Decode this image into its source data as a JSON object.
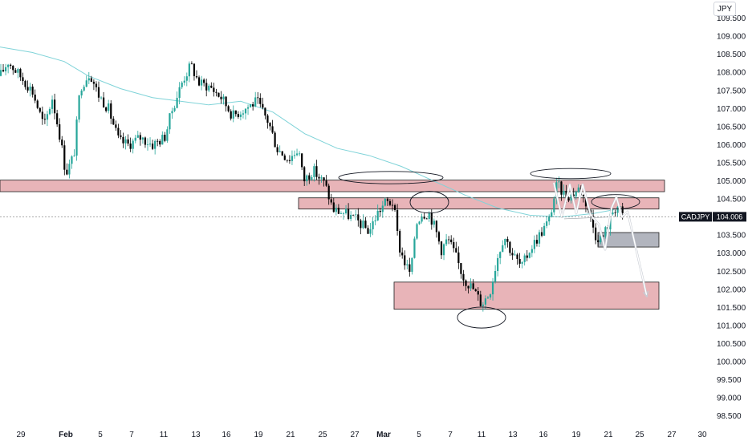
{
  "currency_badge": "JPY",
  "symbol_label": "CADJPY",
  "last_price_label": "104.006",
  "colors": {
    "up": "#26a69a",
    "down": "#000000",
    "ma": "#7fd3d8",
    "zone_fill": "#e8b4b8",
    "zone_stroke": "#1c1c1c",
    "target_fill": "#b2b5be",
    "projection": "#ffffff"
  },
  "chart_data": {
    "type": "candlestick",
    "symbol": "CADJPY",
    "last_price": 104.006,
    "ylim": [
      98.25,
      110.0
    ],
    "y_ticks": [
      "98.500",
      "99.000",
      "99.500",
      "100.000",
      "100.500",
      "101.000",
      "101.500",
      "102.000",
      "102.500",
      "103.000",
      "103.500",
      "104.000",
      "104.500",
      "105.000",
      "105.500",
      "106.000",
      "106.500",
      "107.000",
      "107.500",
      "108.000",
      "108.500",
      "109.000",
      "109.500"
    ],
    "x_ticks": [
      "29",
      "Feb",
      "5",
      "7",
      "11",
      "13",
      "16",
      "19",
      "21",
      "25",
      "27",
      "Mar",
      "5",
      "7",
      "11",
      "13",
      "16",
      "19",
      "21",
      "25",
      "27",
      "30"
    ],
    "x_ticks_bold": [
      "Feb",
      "Mar"
    ],
    "series_path": [
      [
        0,
        107.9
      ],
      [
        10,
        108.3
      ],
      [
        25,
        107.9
      ],
      [
        40,
        107.5
      ],
      [
        55,
        106.5
      ],
      [
        65,
        107.3
      ],
      [
        75,
        106.2
      ],
      [
        82,
        105.2
      ],
      [
        92,
        105.7
      ],
      [
        100,
        107.6
      ],
      [
        112,
        108.0
      ],
      [
        122,
        107.4
      ],
      [
        135,
        107.0
      ],
      [
        148,
        106.1
      ],
      [
        160,
        106.0
      ],
      [
        175,
        106.2
      ],
      [
        190,
        106.0
      ],
      [
        205,
        106.2
      ],
      [
        215,
        107.0
      ],
      [
        228,
        107.8
      ],
      [
        238,
        108.2
      ],
      [
        248,
        107.7
      ],
      [
        262,
        107.6
      ],
      [
        276,
        107.3
      ],
      [
        290,
        106.8
      ],
      [
        305,
        107.0
      ],
      [
        320,
        107.2
      ],
      [
        335,
        106.6
      ],
      [
        345,
        105.9
      ],
      [
        360,
        105.6
      ],
      [
        372,
        105.9
      ],
      [
        378,
        105.0
      ],
      [
        390,
        105.3
      ],
      [
        405,
        104.9
      ],
      [
        415,
        104.2
      ],
      [
        430,
        104.1
      ],
      [
        445,
        103.9
      ],
      [
        460,
        103.6
      ],
      [
        470,
        104.1
      ],
      [
        480,
        104.4
      ],
      [
        490,
        104.4
      ],
      [
        497,
        103.2
      ],
      [
        505,
        102.7
      ],
      [
        512,
        102.4
      ],
      [
        518,
        103.8
      ],
      [
        525,
        104.1
      ],
      [
        535,
        104.1
      ],
      [
        542,
        103.7
      ],
      [
        550,
        103.1
      ],
      [
        558,
        103.4
      ],
      [
        568,
        102.9
      ],
      [
        578,
        102.3
      ],
      [
        590,
        102.0
      ],
      [
        600,
        101.6
      ],
      [
        610,
        101.9
      ],
      [
        620,
        102.9
      ],
      [
        628,
        103.5
      ],
      [
        638,
        103.0
      ],
      [
        650,
        102.6
      ],
      [
        660,
        103.1
      ],
      [
        672,
        103.5
      ],
      [
        684,
        103.9
      ],
      [
        694,
        104.9
      ],
      [
        704,
        104.6
      ],
      [
        712,
        104.6
      ],
      [
        722,
        104.8
      ],
      [
        732,
        104.3
      ],
      [
        742,
        103.5
      ],
      [
        750,
        103.4
      ],
      [
        758,
        103.8
      ],
      [
        764,
        104.2
      ],
      [
        770,
        104.3
      ],
      [
        776,
        104.0
      ]
    ],
    "moving_average": [
      [
        0,
        108.7
      ],
      [
        40,
        108.55
      ],
      [
        80,
        108.3
      ],
      [
        110,
        107.9
      ],
      [
        150,
        107.55
      ],
      [
        190,
        107.3
      ],
      [
        225,
        107.2
      ],
      [
        260,
        107.1
      ],
      [
        300,
        107.2
      ],
      [
        340,
        106.9
      ],
      [
        380,
        106.3
      ],
      [
        420,
        105.9
      ],
      [
        460,
        105.7
      ],
      [
        500,
        105.4
      ],
      [
        540,
        105.0
      ],
      [
        580,
        104.6
      ],
      [
        620,
        104.25
      ],
      [
        660,
        104.05
      ],
      [
        700,
        104.0
      ],
      [
        740,
        104.1
      ],
      [
        765,
        104.2
      ]
    ],
    "zones": [
      {
        "x0": 0,
        "x1": 828,
        "y_low": 104.7,
        "y_high": 105.02,
        "style": "resistance"
      },
      {
        "x0": 372,
        "x1": 821,
        "y_low": 104.22,
        "y_high": 104.53,
        "style": "resistance"
      },
      {
        "x0": 491,
        "x1": 821,
        "y_low": 101.45,
        "y_high": 102.2,
        "style": "support"
      },
      {
        "x0": 745,
        "x1": 821,
        "y_low": 103.17,
        "y_high": 103.57,
        "style": "target"
      }
    ],
    "ellipses": [
      {
        "cx": 487,
        "cy": 105.09,
        "rx": 65,
        "ry": 0.17
      },
      {
        "cx": 535,
        "cy": 104.41,
        "rx": 24,
        "ry": 0.3
      },
      {
        "cx": 600,
        "cy": 101.22,
        "rx": 30,
        "ry": 0.29
      },
      {
        "cx": 711,
        "cy": 105.2,
        "rx": 50,
        "ry": 0.14
      },
      {
        "cx": 767,
        "cy": 104.42,
        "rx": 30,
        "ry": 0.2
      }
    ],
    "projection_path": [
      [
        690,
        104.95
      ],
      [
        700,
        104.0
      ],
      [
        710,
        104.9
      ],
      [
        718,
        104.1
      ],
      [
        726,
        104.9
      ],
      [
        736,
        104.05
      ],
      [
        746,
        103.8
      ],
      [
        754,
        103.1
      ],
      [
        762,
        104.25
      ],
      [
        768,
        104.55
      ],
      [
        775,
        104.0
      ],
      [
        782,
        104.15
      ],
      [
        806,
        101.8
      ]
    ],
    "annotation_lines": [
      {
        "from": [
          703,
          103.95
        ],
        "to": [
          758,
          104.0
        ]
      }
    ]
  }
}
